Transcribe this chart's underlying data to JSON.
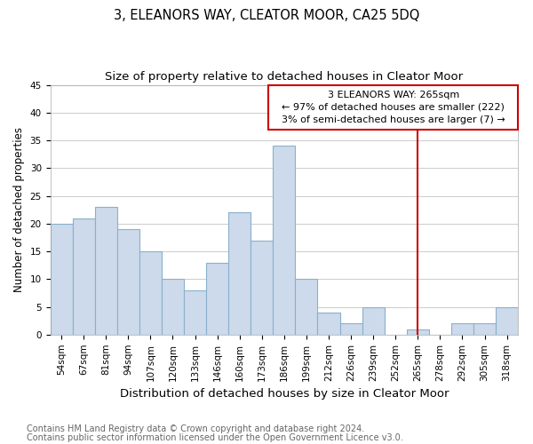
{
  "title": "3, ELEANORS WAY, CLEATOR MOOR, CA25 5DQ",
  "subtitle": "Size of property relative to detached houses in Cleator Moor",
  "xlabel": "Distribution of detached houses by size in Cleator Moor",
  "ylabel": "Number of detached properties",
  "footnote1": "Contains HM Land Registry data © Crown copyright and database right 2024.",
  "footnote2": "Contains public sector information licensed under the Open Government Licence v3.0.",
  "categories": [
    "54sqm",
    "67sqm",
    "81sqm",
    "94sqm",
    "107sqm",
    "120sqm",
    "133sqm",
    "146sqm",
    "160sqm",
    "173sqm",
    "186sqm",
    "199sqm",
    "212sqm",
    "226sqm",
    "239sqm",
    "252sqm",
    "265sqm",
    "278sqm",
    "292sqm",
    "305sqm",
    "318sqm"
  ],
  "values": [
    20,
    21,
    23,
    19,
    15,
    10,
    8,
    13,
    22,
    17,
    34,
    10,
    4,
    2,
    5,
    0,
    1,
    0,
    2,
    2,
    5
  ],
  "bar_color": "#ccdaeb",
  "bar_edge_color": "#8ab0cc",
  "vline_x_index": 16,
  "vline_color": "#cc0000",
  "box_text_line1": "3 ELEANORS WAY: 265sqm",
  "box_text_line2": "← 97% of detached houses are smaller (222)",
  "box_text_line3": "3% of semi-detached houses are larger (7) →",
  "box_color": "#cc0000",
  "box_bg": "#ffffff",
  "ylim": [
    0,
    45
  ],
  "yticks": [
    0,
    5,
    10,
    15,
    20,
    25,
    30,
    35,
    40,
    45
  ],
  "grid_color": "#cccccc",
  "bg_color": "#ffffff",
  "title_fontsize": 10.5,
  "subtitle_fontsize": 9.5,
  "xlabel_fontsize": 9.5,
  "ylabel_fontsize": 8.5,
  "tick_fontsize": 7.5,
  "annotation_fontsize": 8,
  "footnote_fontsize": 7
}
